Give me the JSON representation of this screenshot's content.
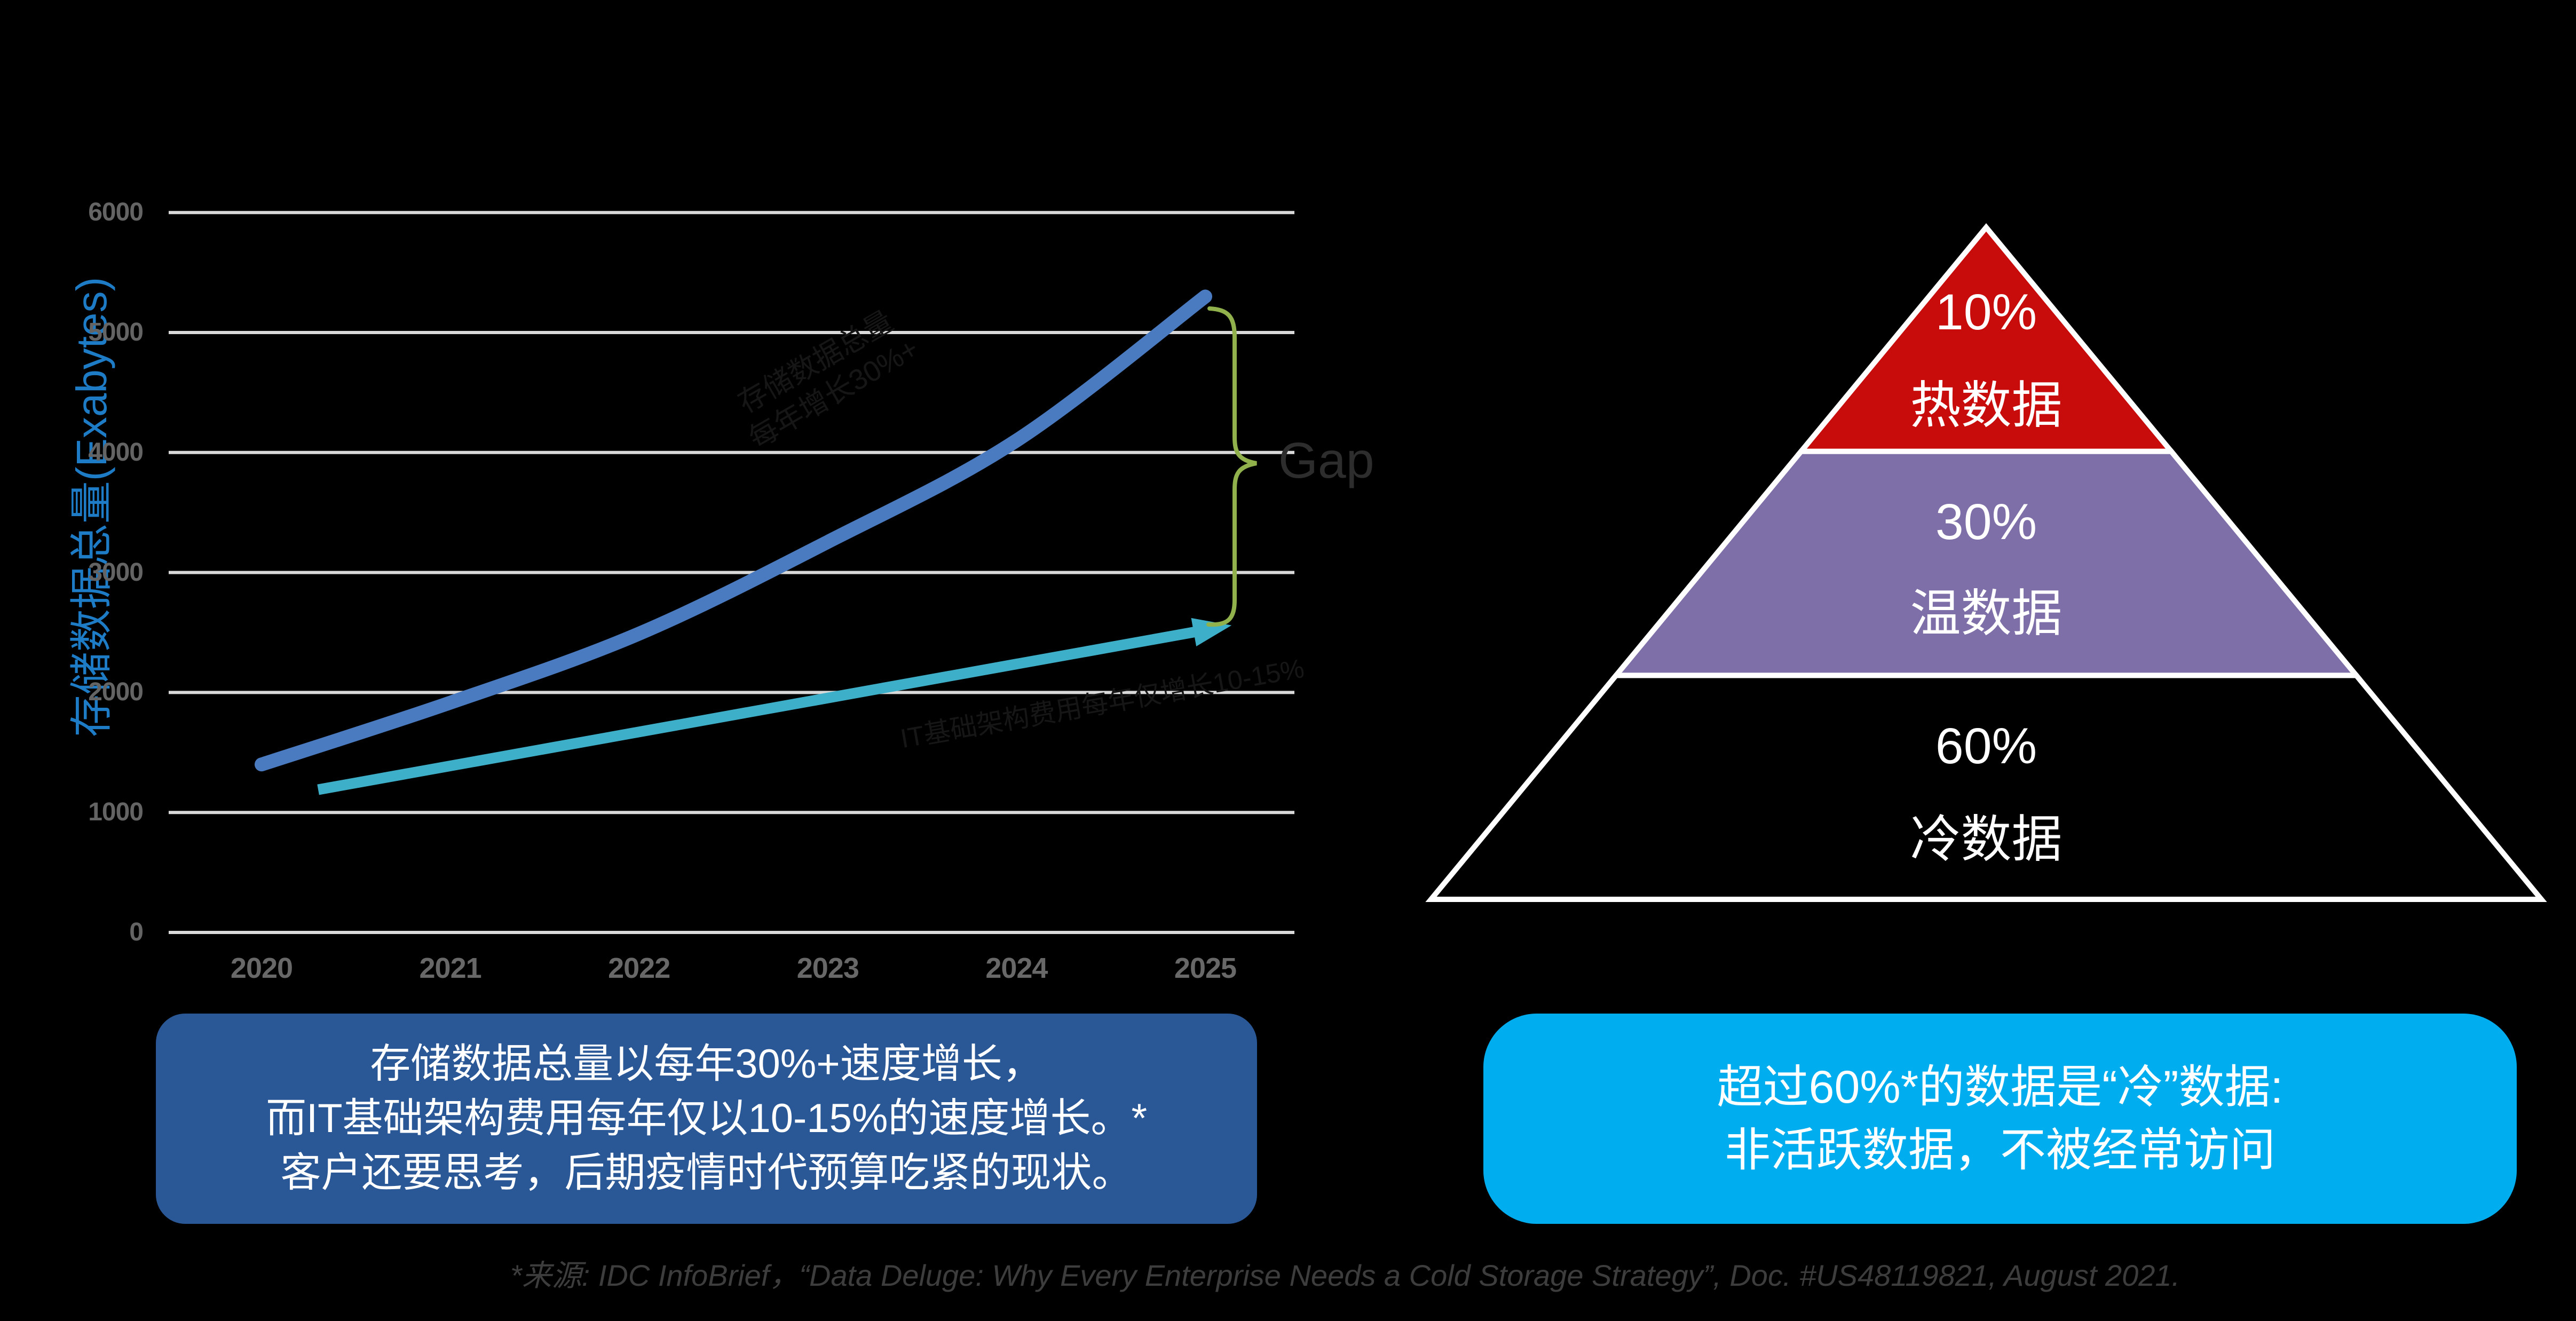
{
  "slide": {
    "background": "#000000"
  },
  "chart_data": {
    "type": "line",
    "title": "",
    "ylabel": "存储数据总量(Exabytes)",
    "xlabel": "",
    "ylim": [
      0,
      6000
    ],
    "yticks": [
      0,
      1000,
      2000,
      3000,
      4000,
      5000,
      6000
    ],
    "xticks": [
      2020,
      2021,
      2022,
      2023,
      2024,
      2025
    ],
    "grid": "horizontal",
    "grid_color": "#D9D9D9",
    "tick_color": "#646464",
    "axis_title_color": "#1E7CC6",
    "series": [
      {
        "name": "存储数据总量增长",
        "color": "#4A7BC0",
        "smooth": true,
        "width": 26,
        "points": [
          [
            2020,
            1400
          ],
          [
            2021,
            1915
          ],
          [
            2022,
            2490
          ],
          [
            2023,
            3255
          ],
          [
            2024,
            4100
          ],
          [
            2025,
            5300
          ]
        ]
      },
      {
        "name": "IT基础架构费用增长",
        "color": "#3EAFC8",
        "smooth": false,
        "width": 20,
        "arrow_end": true,
        "points": [
          [
            2020.3,
            1190
          ],
          [
            2025,
            2520
          ]
        ]
      }
    ],
    "annotations": {
      "gap_label": "Gap",
      "gap_color": "#2D2D2D",
      "brace_color": "#90B14C"
    }
  },
  "line_labels": {
    "blue_line1": "存储数据总量",
    "blue_line2": "每年增长30%+",
    "teal_line": "IT基础架构费用每年仅增长10-15%"
  },
  "pyramid": {
    "outline_color": "#FFFFFF",
    "sections": [
      {
        "percent": "10%",
        "label": "热数据",
        "color": "#C80B0B"
      },
      {
        "percent": "30%",
        "label": "温数据",
        "color": "#7F6FA8"
      },
      {
        "percent": "60%",
        "label": "冷数据",
        "color": "#000000"
      }
    ]
  },
  "callouts": {
    "left": {
      "bg": "#2A5795",
      "lines": [
        "存储数据总量以每年30%+速度增长，",
        "而IT基础架构费用每年仅以10-15%的速度增长。*",
        "客户还要思考，后期疫情时代预算吃紧的现状。"
      ]
    },
    "right": {
      "bg": "#00AEEF",
      "lines": [
        "超过60%*的数据是“冷”数据:",
        "非活跃数据，不被经常访问"
      ]
    }
  },
  "source": {
    "text": "*来源: IDC InfoBrief，“Data Deluge: Why Every Enterprise Needs a Cold Storage Strategy”, Doc. #US48119821, August 2021.",
    "color": "#3D3D3D"
  }
}
